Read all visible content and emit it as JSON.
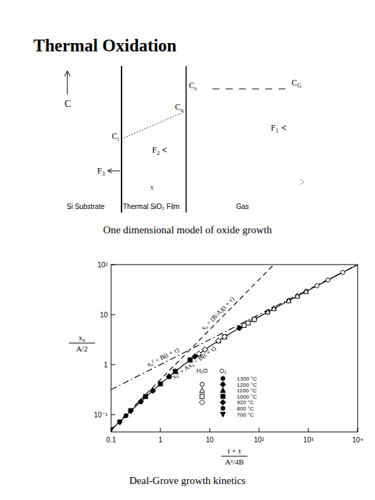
{
  "title": "Thermal Oxidation",
  "diagram": {
    "axis_label": "C",
    "regions": [
      "Si Substrate",
      "Thermal SiO₂ Film",
      "Gas"
    ],
    "concentrations": {
      "surface": "Cs",
      "oxide_surface": "Co",
      "interface": "Ci",
      "gas": "CG"
    },
    "fluxes": [
      "F1",
      "F2",
      "F3"
    ],
    "thickness_label": "x"
  },
  "captions": [
    "One dimensional model of oxide growth",
    "Deal-Grove growth kinetics"
  ],
  "chart_data": {
    "type": "scatter",
    "log": true,
    "grid": false,
    "legend": "lower right",
    "xlabel": {
      "numerator": "t + τ",
      "denominator": "A²/4B"
    },
    "ylabel": {
      "numerator": "x₀",
      "denominator": "A/2"
    },
    "xlim": [
      0.1,
      10000
    ],
    "xticks": [
      0.1,
      1,
      10,
      {
        "value": 100,
        "label": "10²"
      },
      {
        "value": 1000,
        "label": "10³"
      },
      {
        "value": 10000,
        "label": "10⁴"
      }
    ],
    "ylim": [
      0.045,
      100
    ],
    "yticks": [
      {
        "value": 0.1,
        "label": "10⁻¹"
      },
      1,
      10,
      {
        "value": 100,
        "label": "10²"
      }
    ],
    "legend_columns": [
      "H₂O",
      "O₂"
    ],
    "series": [
      {
        "name": "x₀ = (B/A)(t + τ)",
        "type": "line",
        "line_style": "dashed",
        "color": "#000000",
        "x": [
          0.1,
          200
        ],
        "values": [
          0.05,
          100
        ]
      },
      {
        "name": "x₀² = B(t + τ)",
        "type": "line",
        "line_style": "dashdot",
        "color": "#000000",
        "x": [
          0.1,
          10000
        ],
        "values": [
          0.316,
          100
        ]
      },
      {
        "name": "x₀² + Ax₀ = B(t + τ)",
        "type": "line",
        "line_style": "solid",
        "color": "#000000",
        "x": [
          0.1,
          0.3,
          1,
          3,
          10,
          30,
          100,
          300,
          1000,
          3000,
          10000
        ],
        "values": [
          0.049,
          0.14,
          0.414,
          1,
          2.32,
          4.57,
          9.05,
          16.3,
          30.6,
          53.8,
          99
        ]
      },
      {
        "name": "1300 °C",
        "group": "O₂",
        "marker": "circle",
        "color": "#000000",
        "x": [
          20,
          40,
          80,
          150,
          200,
          400
        ],
        "values": [
          3.6,
          5.4,
          8.0,
          11.3,
          13.2,
          19.0
        ]
      },
      {
        "name": "1200 °C",
        "group": "O₂",
        "marker": "diamond",
        "color": "#000000",
        "x": [
          5,
          8,
          15,
          40,
          80
        ],
        "values": [
          1.45,
          2.0,
          3.0,
          5.4,
          8.0
        ]
      },
      {
        "name": "1100 °C",
        "group": "O₂",
        "marker": "triangle",
        "color": "#000000",
        "x": [
          1.5,
          2,
          4,
          6,
          15
        ],
        "values": [
          0.58,
          0.73,
          1.24,
          1.65,
          3.0
        ]
      },
      {
        "name": "1000 °C",
        "group": "O₂",
        "marker": "square",
        "color": "#000000",
        "x": [
          0.5,
          1,
          2,
          4
        ],
        "values": [
          0.23,
          0.41,
          0.73,
          1.24
        ]
      },
      {
        "name": "920 °C",
        "group": "O₂",
        "marker": "diamond",
        "color": "#000000",
        "x": [
          0.25,
          0.4,
          0.7,
          1.5
        ],
        "values": [
          0.118,
          0.183,
          0.3,
          0.58
        ]
      },
      {
        "name": "800 °C",
        "group": "O₂",
        "marker": "circle",
        "color": "#000000",
        "x": [
          0.15,
          0.2,
          0.4,
          0.7
        ],
        "values": [
          0.072,
          0.095,
          0.18,
          0.3
        ]
      },
      {
        "name": "700 °C",
        "group": "O₂",
        "marker": "triangle-down",
        "color": "#000000",
        "x": [
          0.1,
          0.15,
          0.25
        ],
        "values": [
          0.05,
          0.07,
          0.12
        ]
      },
      {
        "name": "1200 °C",
        "group": "H₂O",
        "marker": "circle-open",
        "color": "#000000",
        "x": [
          600,
          900,
          1500,
          2500,
          5000
        ],
        "values": [
          23.5,
          29,
          37.7,
          49,
          69.7
        ]
      },
      {
        "name": "1100 °C",
        "group": "H₂O",
        "marker": "triangle-open",
        "color": "#000000",
        "x": [
          150,
          200,
          400,
          600,
          900
        ],
        "values": [
          11.3,
          13.2,
          19,
          23.5,
          29
        ]
      },
      {
        "name": "1000 °C",
        "group": "H₂O",
        "marker": "square-open",
        "color": "#000000",
        "x": [
          20,
          50,
          60,
          80
        ],
        "values": [
          3.6,
          6.1,
          6.8,
          8.0
        ]
      },
      {
        "name": "920 °C",
        "group": "H₂O",
        "marker": "diamond-open",
        "color": "#000000",
        "x": [
          6,
          8,
          15,
          20
        ],
        "values": [
          1.65,
          2.0,
          3.0,
          3.6
        ]
      }
    ]
  }
}
